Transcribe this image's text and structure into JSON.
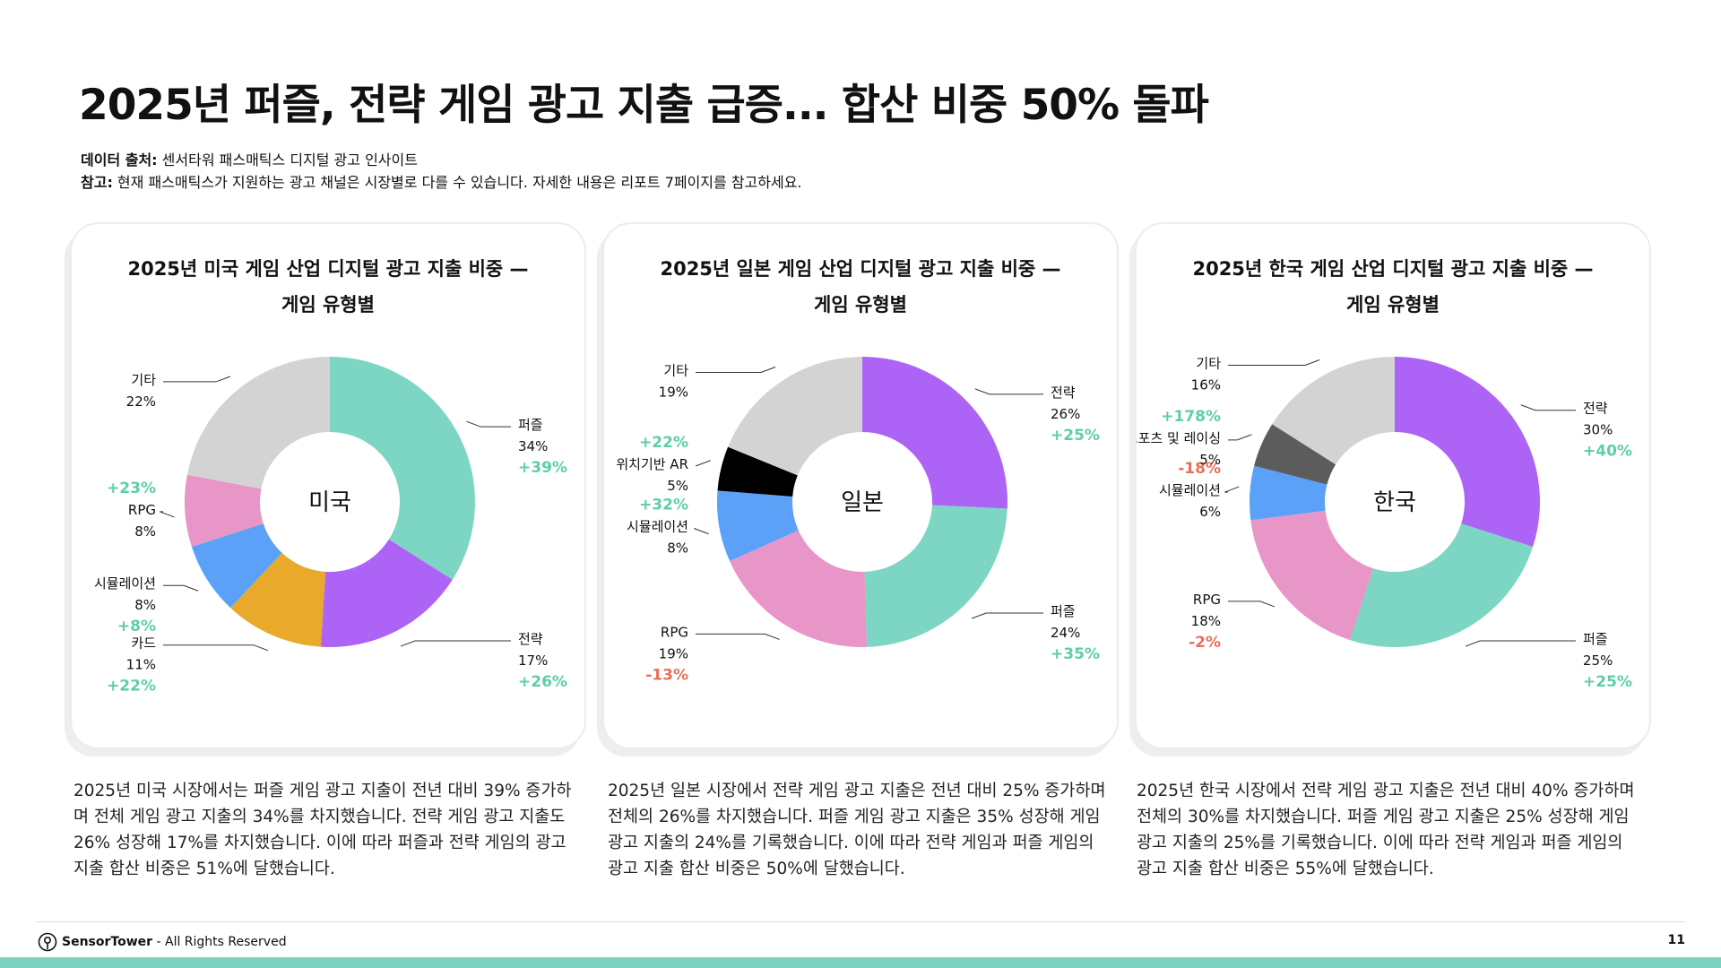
{
  "page": {
    "title": "2025년 퍼즐, 전략 게임 광고 지출 급증... 합산 비중 50% 돌파",
    "source_label": "데이터 출처:",
    "source_text": " 센서타워 패스매틱스 디지털 광고 인사이트",
    "note_label": "참고:",
    "note_text": " 현재 패스매틱스가 지원하는 광고 채널은 시장별로 다를 수 있습니다. 자세한 내용은 리포트 7페이지를 참고하세요."
  },
  "footer": {
    "brand": "SensorTower",
    "rights": " - All Rights Reserved",
    "page_number": "11"
  },
  "colors": {
    "positive": "#5ccfa6",
    "negative": "#e8705a",
    "puzzle": "#7dd6c4",
    "strategy": "#ad63f5",
    "card": "#e9aa2b",
    "simulation": "#5ba1f7",
    "rpg": "#e895c8",
    "other": "#d3d3d3",
    "location_ar": "#000000",
    "sports_racing": "#5c5c5c",
    "bottom_bar": "#7dd3c0"
  },
  "chart_data": [
    {
      "type": "pie",
      "variant": "donut",
      "title_line1": "2025년 미국 게임 산업 디지털 광고 지출 비중 —",
      "title_line2": "게임 유형별",
      "center_label": "미국",
      "slices": [
        {
          "label": "퍼즐",
          "value": 34,
          "value_label": "34%",
          "growth": "+39%",
          "color_key": "puzzle"
        },
        {
          "label": "전략",
          "value": 17,
          "value_label": "17%",
          "growth": "+26%",
          "color_key": "strategy"
        },
        {
          "label": "카드",
          "value": 11,
          "value_label": "11%",
          "growth": "+22%",
          "color_key": "card"
        },
        {
          "label": "시뮬레이션",
          "value": 8,
          "value_label": "8%",
          "growth": "+8%",
          "color_key": "simulation"
        },
        {
          "label": "RPG",
          "value": 8,
          "value_label": "8%",
          "growth": "+23%",
          "color_key": "rpg"
        },
        {
          "label": "기타",
          "value": 22,
          "value_label": "22%",
          "growth": "",
          "color_key": "other"
        }
      ],
      "description": "2025년 미국 시장에서는 퍼즐 게임 광고 지출이 전년 대비 39% 증가하며 전체 게임 광고 지출의 34%를 차지했습니다. 전략 게임 광고 지출도 26% 성장해 17%를 차지했습니다. 이에 따라 퍼즐과 전략 게임의 광고 지출 합산 비중은 51%에 달했습니다."
    },
    {
      "type": "pie",
      "variant": "donut",
      "title_line1": "2025년 일본 게임 산업 디지털 광고 지출 비중 —",
      "title_line2": "게임 유형별",
      "center_label": "일본",
      "slices": [
        {
          "label": "전략",
          "value": 26,
          "value_label": "26%",
          "growth": "+25%",
          "color_key": "strategy"
        },
        {
          "label": "퍼즐",
          "value": 24,
          "value_label": "24%",
          "growth": "+35%",
          "color_key": "puzzle"
        },
        {
          "label": "RPG",
          "value": 19,
          "value_label": "19%",
          "growth": "-13%",
          "color_key": "rpg"
        },
        {
          "label": "시뮬레이션",
          "value": 8,
          "value_label": "8%",
          "growth": "+32%",
          "color_key": "simulation"
        },
        {
          "label": "위치기반 AR",
          "value": 5,
          "value_label": "5%",
          "growth": "+22%",
          "color_key": "location_ar"
        },
        {
          "label": "기타",
          "value": 19,
          "value_label": "19%",
          "growth": "",
          "color_key": "other"
        }
      ],
      "description": "2025년 일본 시장에서 전략 게임 광고 지출은 전년 대비 25% 증가하며 전체의 26%를 차지했습니다. 퍼즐 게임 광고 지출은 35% 성장해 게임 광고 지출의 24%를 기록했습니다. 이에 따라 전략 게임과 퍼즐 게임의 광고 지출 합산 비중은 50%에 달했습니다."
    },
    {
      "type": "pie",
      "variant": "donut",
      "title_line1": "2025년 한국 게임 산업 디지털 광고 지출 비중 —",
      "title_line2": "게임 유형별",
      "center_label": "한국",
      "slices": [
        {
          "label": "전략",
          "value": 30,
          "value_label": "30%",
          "growth": "+40%",
          "color_key": "strategy"
        },
        {
          "label": "퍼즐",
          "value": 25,
          "value_label": "25%",
          "growth": "+25%",
          "color_key": "puzzle"
        },
        {
          "label": "RPG",
          "value": 18,
          "value_label": "18%",
          "growth": "-2%",
          "color_key": "rpg"
        },
        {
          "label": "시뮬레이션",
          "value": 6,
          "value_label": "6%",
          "growth": "-18%",
          "color_key": "simulation"
        },
        {
          "label": "스포츠 및 레이싱",
          "value": 5,
          "value_label": "5%",
          "growth": "+178%",
          "color_key": "sports_racing"
        },
        {
          "label": "기타",
          "value": 16,
          "value_label": "16%",
          "growth": "",
          "color_key": "other"
        }
      ],
      "description": "2025년 한국 시장에서 전략 게임 광고 지출은 전년 대비 40% 증가하며 전체의 30%를 차지했습니다. 퍼즐 게임 광고 지출은 25% 성장해 게임 광고 지출의 25%를 기록했습니다. 이에 따라 전략 게임과 퍼즐 게임의 광고 지출 합산 비중은 55%에 달했습니다."
    }
  ]
}
